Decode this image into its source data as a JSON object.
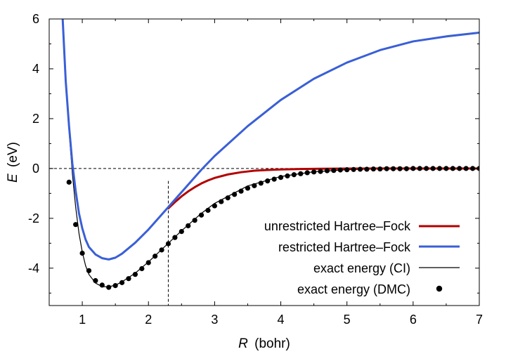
{
  "chart_data": {
    "type": "line",
    "title": "",
    "xlabel": "(bohr)",
    "xlabel_symbol": "R",
    "ylabel": "(eV)",
    "ylabel_symbol": "E",
    "xlim": [
      0.5,
      7
    ],
    "ylim": [
      -5.5,
      6
    ],
    "xticks": [
      1,
      2,
      3,
      4,
      5,
      6,
      7
    ],
    "yticks": [
      -4,
      -2,
      0,
      2,
      4,
      6
    ],
    "xtick_labels": [
      "1",
      "2",
      "3",
      "4",
      "5",
      "6",
      "7"
    ],
    "ytick_labels": [
      "-4",
      "-2",
      "0",
      "2",
      "4",
      "6"
    ],
    "reference_lines": {
      "zero_energy_y": 0,
      "coulson_fischer_x": 2.3,
      "coulson_fischer_y_top": -0.5
    },
    "legend_position": "bottom-right",
    "series": [
      {
        "name": "unrestricted Hartree–Fock",
        "color": "#b30000",
        "style": "line",
        "x": [
          2.3,
          2.4,
          2.5,
          2.6,
          2.7,
          2.8,
          2.9,
          3.0,
          3.2,
          3.4,
          3.6,
          3.8,
          4.0,
          4.3,
          4.6,
          5.0,
          5.5,
          6.0,
          7.0
        ],
        "y": [
          -1.6,
          -1.35,
          -1.12,
          -0.92,
          -0.75,
          -0.6,
          -0.48,
          -0.38,
          -0.24,
          -0.15,
          -0.09,
          -0.06,
          -0.04,
          -0.02,
          -0.01,
          -0.005,
          0,
          0,
          0
        ]
      },
      {
        "name": "restricted Hartree–Fock",
        "color": "#3a5fd6",
        "style": "line",
        "x": [
          0.7,
          0.75,
          0.8,
          0.85,
          0.9,
          0.95,
          1.0,
          1.05,
          1.1,
          1.2,
          1.3,
          1.4,
          1.5,
          1.6,
          1.8,
          2.0,
          2.3,
          2.5,
          2.8,
          3.0,
          3.5,
          4.0,
          4.5,
          5.0,
          5.5,
          6.0,
          6.5,
          7.0
        ],
        "y": [
          6.2,
          3.5,
          1.7,
          0.2,
          -0.9,
          -1.8,
          -2.4,
          -2.85,
          -3.15,
          -3.45,
          -3.6,
          -3.65,
          -3.58,
          -3.42,
          -2.98,
          -2.45,
          -1.55,
          -0.95,
          -0.05,
          0.5,
          1.7,
          2.75,
          3.6,
          4.25,
          4.75,
          5.1,
          5.3,
          5.45
        ]
      },
      {
        "name": "exact energy (CI)",
        "color": "#000000",
        "style": "thin-line",
        "x": [
          0.7,
          0.75,
          0.8,
          0.85,
          0.9,
          0.95,
          1.0,
          1.05,
          1.1,
          1.2,
          1.3,
          1.4,
          1.5,
          1.6,
          1.8,
          2.0,
          2.3,
          2.5,
          2.8,
          3.0,
          3.5,
          4.0,
          4.5,
          5.0,
          5.5,
          6.0,
          6.5,
          7.0
        ],
        "y": [
          6.1,
          3.3,
          1.5,
          -0.2,
          -1.55,
          -2.6,
          -3.35,
          -3.9,
          -4.25,
          -4.6,
          -4.74,
          -4.75,
          -4.68,
          -4.55,
          -4.2,
          -3.75,
          -3.0,
          -2.5,
          -1.8,
          -1.4,
          -0.7,
          -0.32,
          -0.13,
          -0.05,
          -0.02,
          -0.01,
          0,
          0
        ]
      },
      {
        "name": "exact energy (DMC)",
        "color": "#000000",
        "style": "markers",
        "x": [
          0.8,
          0.9,
          1.0,
          1.1,
          1.2,
          1.3,
          1.4,
          1.5,
          1.6,
          1.7,
          1.8,
          1.9,
          2.0,
          2.1,
          2.2,
          2.3,
          2.4,
          2.5,
          2.6,
          2.7,
          2.8,
          2.9,
          3.0,
          3.1,
          3.2,
          3.3,
          3.4,
          3.5,
          3.6,
          3.7,
          3.8,
          3.9,
          4.0,
          4.1,
          4.2,
          4.3,
          4.4,
          4.5,
          4.6,
          4.7,
          4.8,
          4.9,
          5.0,
          5.1,
          5.2,
          5.3,
          5.4,
          5.5,
          5.6,
          5.7,
          5.8,
          5.9,
          6.0,
          6.1,
          6.2,
          6.3,
          6.4,
          6.5,
          6.6,
          6.7,
          6.8,
          6.9,
          7.0
        ],
        "y": [
          -0.55,
          -2.25,
          -3.4,
          -4.1,
          -4.5,
          -4.68,
          -4.77,
          -4.7,
          -4.58,
          -4.42,
          -4.25,
          -4.02,
          -3.78,
          -3.52,
          -3.27,
          -3.02,
          -2.77,
          -2.53,
          -2.3,
          -2.08,
          -1.87,
          -1.68,
          -1.5,
          -1.33,
          -1.18,
          -1.04,
          -0.91,
          -0.79,
          -0.69,
          -0.59,
          -0.5,
          -0.43,
          -0.36,
          -0.3,
          -0.25,
          -0.21,
          -0.17,
          -0.14,
          -0.12,
          -0.09,
          -0.08,
          -0.06,
          -0.05,
          -0.04,
          -0.03,
          -0.03,
          -0.02,
          -0.02,
          -0.01,
          -0.01,
          -0.01,
          -0.01,
          0,
          0,
          0,
          0,
          0,
          0,
          0,
          0,
          0,
          0,
          0
        ]
      }
    ]
  }
}
